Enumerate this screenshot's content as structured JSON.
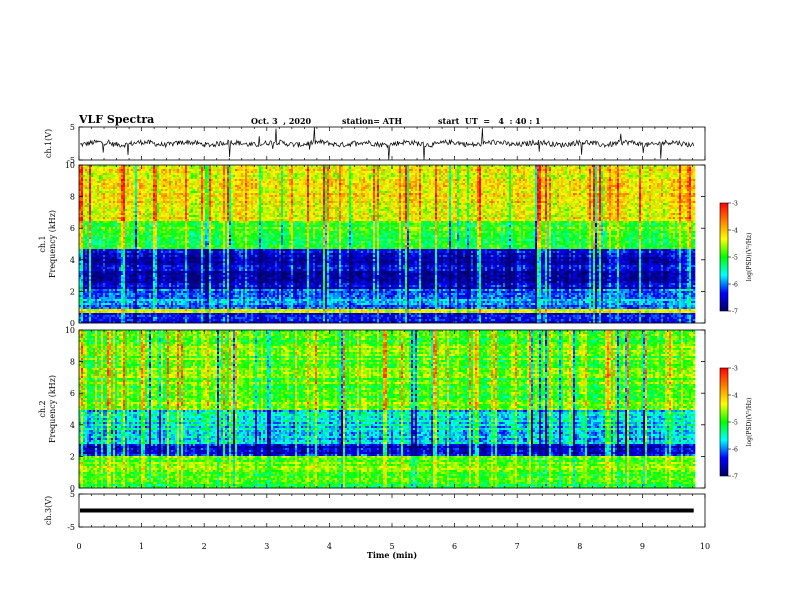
{
  "header": {
    "title": "VLF Spectra",
    "date": "Oct. 3  , 2020",
    "station": "station= ATH",
    "start": "start  UT  =   4  : 40 : 1"
  },
  "colorbar": {
    "label": "log(PSD)(V²/Hz)",
    "ticks": [
      "-3",
      "-4",
      "-5",
      "-6",
      "-7"
    ],
    "stops": [
      "#ff0000",
      "#ff7f00",
      "#ffff00",
      "#00ff00",
      "#00ffff",
      "#0000ff",
      "#000066"
    ]
  },
  "chart_data": [
    {
      "type": "line",
      "panel": "ch.1 waveform",
      "ylabel": "ch.1(V)",
      "ylim": [
        -5,
        5
      ],
      "yticks": [
        "5",
        "-5"
      ],
      "xlim": [
        0,
        10
      ],
      "approx_level": 0,
      "color": "#000000"
    },
    {
      "type": "heatmap",
      "panel": "ch.1 spectrogram",
      "ylabel": "ch.1\nFrequency  (kHz)",
      "xlim": [
        0,
        10
      ],
      "ylim": [
        0,
        10
      ],
      "yticks": [
        "0",
        "2",
        "4",
        "6",
        "8",
        "10"
      ],
      "data_end_min": 9.82,
      "clim": [
        -7,
        -3
      ],
      "bands_kHz": [
        {
          "range": [
            0,
            0.6
          ],
          "log_psd": -6.3
        },
        {
          "range": [
            0.6,
            0.9
          ],
          "log_psd": -4.4
        },
        {
          "range": [
            0.9,
            2.1
          ],
          "log_psd": -6.0
        },
        {
          "range": [
            2.1,
            4.7
          ],
          "log_psd": -6.6
        },
        {
          "range": [
            4.7,
            6.5
          ],
          "log_psd": -5.0
        },
        {
          "range": [
            6.5,
            10
          ],
          "log_psd": -4.3
        }
      ]
    },
    {
      "type": "heatmap",
      "panel": "ch.2 spectrogram",
      "ylabel": "ch.2\nFrequency  (kHz)",
      "xlim": [
        0,
        10
      ],
      "ylim": [
        0,
        10
      ],
      "yticks": [
        "0",
        "2",
        "4",
        "6",
        "8",
        "10"
      ],
      "data_end_min": 9.82,
      "clim": [
        -7,
        -3
      ],
      "bands_kHz": [
        {
          "range": [
            0,
            0.7
          ],
          "log_psd": -5.0
        },
        {
          "range": [
            0.7,
            2.0
          ],
          "log_psd": -4.8
        },
        {
          "range": [
            2.0,
            2.8
          ],
          "log_psd": -6.5
        },
        {
          "range": [
            2.8,
            5.0
          ],
          "log_psd": -5.7
        },
        {
          "range": [
            5.0,
            10
          ],
          "log_psd": -4.8
        }
      ]
    },
    {
      "type": "line",
      "panel": "ch.3 waveform",
      "ylabel": "ch.3(V)",
      "ylim": [
        -5,
        5
      ],
      "yticks": [
        "5",
        "-5"
      ],
      "xlim": [
        0,
        10
      ],
      "approx_level": 0,
      "color": "#000000"
    }
  ],
  "x_axis": {
    "label": "Time  (min)",
    "ticks": [
      "0",
      "1",
      "2",
      "3",
      "4",
      "5",
      "6",
      "7",
      "8",
      "9",
      "10"
    ]
  }
}
